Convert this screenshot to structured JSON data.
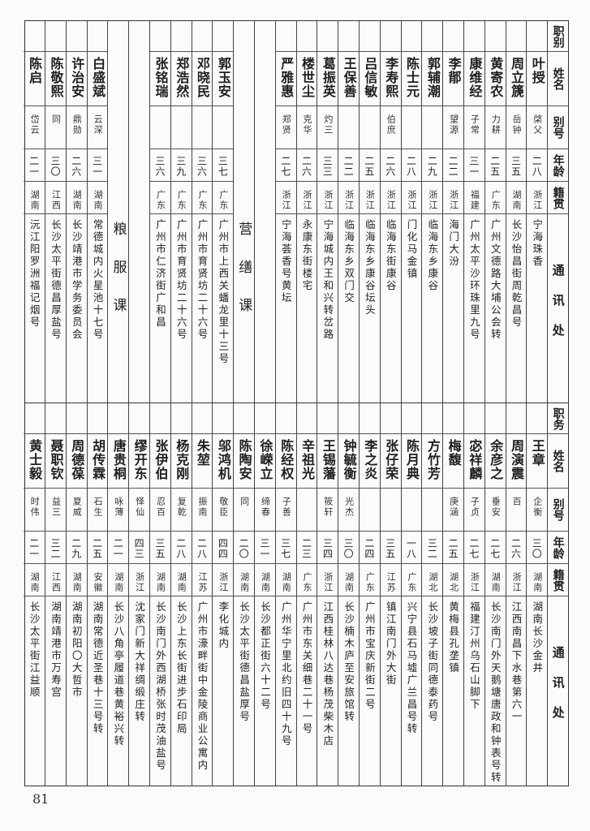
{
  "top_table": {
    "headers": [
      "职别",
      "姓名",
      "别号",
      "年龄",
      "籍贯",
      "通讯处"
    ],
    "columns": [
      {
        "name": "叶授",
        "alias": "棨父",
        "age": "二八",
        "origin": "浙江",
        "address": "宁海珠香"
      },
      {
        "name": "周立篪",
        "alias": "岳钟",
        "age": "三五",
        "origin": "湖南",
        "address": "长沙怡昌街周乾昌号"
      },
      {
        "name": "黄寄农",
        "alias": "力耕",
        "age": "二五",
        "origin": "广东",
        "address": "广州文德路大埔公会转"
      },
      {
        "name": "康维经",
        "alias": "子常",
        "age": "三一",
        "origin": "福建",
        "address": "广州太平沙环珠里九号"
      },
      {
        "name": "李鄁",
        "alias": "望源",
        "age": "二二",
        "origin": "浙江",
        "address": "海门大汾"
      },
      {
        "name": "郭辅潮",
        "alias": "",
        "age": "二九",
        "origin": "浙江",
        "address": "临海东乡康谷"
      },
      {
        "name": "陈士元",
        "alias": "",
        "age": "二八",
        "origin": "浙江",
        "address": "门化马金镇"
      },
      {
        "name": "李寿熙",
        "alias": "伯庶",
        "age": "二六",
        "origin": "浙江",
        "address": "临海东街康谷"
      },
      {
        "name": "吕信敏",
        "alias": "",
        "age": "二五",
        "origin": "浙江",
        "address": "临海东乡康谷坛头"
      },
      {
        "name": "王保善",
        "alias": "",
        "age": "二二",
        "origin": "浙江",
        "address": "临海东乡双门交"
      },
      {
        "name": "葛振英",
        "alias": "灼三",
        "age": "三三",
        "origin": "浙江",
        "address": "宁海城内王和兴转岔路"
      },
      {
        "name": "楼世尘",
        "alias": "克华",
        "age": "二六",
        "origin": "浙江",
        "address": "永康东街楼宅"
      },
      {
        "name": "严雅惠",
        "alias": "郑贤",
        "age": "二七",
        "origin": "浙江",
        "address": "宁海荟香号黄坛"
      },
      {
        "blank": true
      },
      {
        "section": "营缮课"
      },
      {
        "name": "郭玉安",
        "alias": "",
        "age": "三七",
        "origin": "广东",
        "address": "广州市上西关蟠龙里十三号"
      },
      {
        "name": "邓晓民",
        "alias": "",
        "age": "三六",
        "origin": "广东",
        "address": "广州市育贤坊二十六号"
      },
      {
        "name": "郑浩然",
        "alias": "",
        "age": "三九",
        "origin": "广东",
        "address": "广州市育贤坊二十六号"
      },
      {
        "name": "张铭瑞",
        "alias": "",
        "age": "三六",
        "origin": "广东",
        "address": "广州市仁济街广和昌"
      },
      {
        "blank": true
      },
      {
        "section": "粮服课"
      },
      {
        "name": "白盛斌",
        "alias": "云深",
        "age": "三一",
        "origin": "湖南",
        "address": "常德城内火星池十七号"
      },
      {
        "name": "许治安",
        "alias": "鼎勋",
        "age": "二六",
        "origin": "湖南",
        "address": "长沙靖港市学务委员会"
      },
      {
        "name": "陈敬熙",
        "alias": "同",
        "age": "三〇",
        "origin": "江西",
        "address": "长沙太平街德昌厚盐号"
      },
      {
        "name": "陈启",
        "alias": "岱云",
        "age": "二一",
        "origin": "湖南",
        "address": "沅江阳罗洲福记烟号"
      }
    ]
  },
  "bottom_table": {
    "headers": [
      "职务",
      "姓名",
      "别号",
      "年龄",
      "籍贯",
      "通讯处"
    ],
    "columns": [
      {
        "name": "王章",
        "alias": "企衡",
        "age": "三〇",
        "origin": "湖南",
        "address": "湖南长沙金井"
      },
      {
        "name": "周演震",
        "alias": "百",
        "age": "二六",
        "origin": "浙江",
        "address": "江西南昌下水巷第六一"
      },
      {
        "name": "余彦之",
        "alias": "垂安",
        "age": "二七",
        "origin": "湖南",
        "address": "长沙南门外天鹅塘唐政和钟表号转"
      },
      {
        "name": "宓祥麟",
        "alias": "子贞",
        "age": "二七",
        "origin": "浙江",
        "address": "福建汀州乌石山脚下"
      },
      {
        "name": "梅馥",
        "alias": "庚涵",
        "age": "二五",
        "origin": "湖北",
        "address": "黄梅县孔垄镇"
      },
      {
        "name": "方竹芳",
        "alias": "",
        "age": "三二",
        "origin": "湖北",
        "address": "长沙坡子街同德泰药号"
      },
      {
        "name": "陈月典",
        "alias": "",
        "age": "一八",
        "origin": "广东",
        "address": "兴宁县石马墟广兰昌号转"
      },
      {
        "name": "张仔荣",
        "alias": "",
        "age": "三五",
        "origin": "江苏",
        "address": "镇江南门外大街"
      },
      {
        "name": "李之炎",
        "alias": "",
        "age": "二四",
        "origin": "广东",
        "address": "广州市宝庆新街二号"
      },
      {
        "name": "钟毓衡",
        "alias": "光杰",
        "age": "三〇",
        "origin": "湖南",
        "address": "长沙楠木庐至安旅馆转"
      },
      {
        "name": "王锡藩",
        "alias": "筱轩",
        "age": "三四",
        "origin": "浙江",
        "address": "江西桂林八达巷杨茂柴木店"
      },
      {
        "name": "辛祖光",
        "alias": "",
        "age": "二三",
        "origin": "广东",
        "address": "广州市东关细巷二十一号"
      },
      {
        "name": "陈经权",
        "alias": "子善",
        "age": "三七",
        "origin": "湖南",
        "address": "广州华宁里北约旧四十九号"
      },
      {
        "name": "徐嵘立",
        "alias": "缔春",
        "age": "三一",
        "origin": "湖南",
        "address": "长沙都正街六十二号"
      },
      {
        "name": "陈陶安",
        "alias": "同",
        "age": "二〇",
        "origin": "湖南",
        "address": "长沙太平街德昌盐厚号"
      },
      {
        "name": "邬鸿机",
        "alias": "敬臣",
        "age": "四四",
        "origin": "浙江",
        "address": "李化城内"
      },
      {
        "name": "朱堃",
        "alias": "振南",
        "age": "二八",
        "origin": "江苏",
        "address": "广州市濠畔街中金陵商业公寓内"
      },
      {
        "name": "杨克刚",
        "alias": "复乾",
        "age": "二八",
        "origin": "湖南",
        "address": "长沙上东长街进步石印局"
      },
      {
        "name": "张伊伯",
        "alias": "忍百",
        "age": "三五",
        "origin": "湖南",
        "address": "长沙南门外西湖桥张时茂油盐号"
      },
      {
        "name": "缪开东",
        "alias": "怿仙",
        "age": "四三",
        "origin": "浙江",
        "address": "沈家门新大祥绸缎庄转"
      },
      {
        "name": "唐贵桐",
        "alias": "咏薄",
        "age": "二一",
        "origin": "湖南",
        "address": "长沙八角亭履道巷黄裕兴转"
      },
      {
        "name": "胡传霖",
        "alias": "石生",
        "age": "二五",
        "origin": "安徽",
        "address": "湖南常德近圣巷十三号转"
      },
      {
        "name": "周德葆",
        "alias": "夏威",
        "age": "二九",
        "origin": "湖南",
        "address": "湖南初阳〇大哲市"
      },
      {
        "name": "聂职钦",
        "alias": "益三",
        "age": "三二",
        "origin": "江西",
        "address": "湖南靖港市万寿宫"
      },
      {
        "name": "黄士毅",
        "alias": "时伟",
        "age": "二一",
        "origin": "湖南",
        "address": "长沙太平街江益顺"
      }
    ]
  },
  "page_number": "81"
}
